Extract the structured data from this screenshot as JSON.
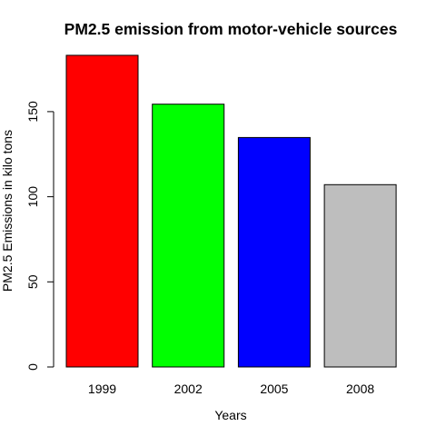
{
  "chart_data": {
    "type": "bar",
    "title": "PM2.5 emission from motor-vehicle sources",
    "xlabel": "Years",
    "ylabel": "PM2.5 Emissions in kilo tons",
    "categories": [
      "1999",
      "2002",
      "2005",
      "2008"
    ],
    "values": [
      183.1,
      154.4,
      134.8,
      107.1
    ],
    "colors": [
      "#FF0000",
      "#00FF00",
      "#0000FF",
      "#BEBEBE"
    ],
    "yticks": [
      0,
      50,
      100,
      150
    ],
    "ylim": [
      0,
      190
    ],
    "grid": false,
    "legend": "none"
  }
}
